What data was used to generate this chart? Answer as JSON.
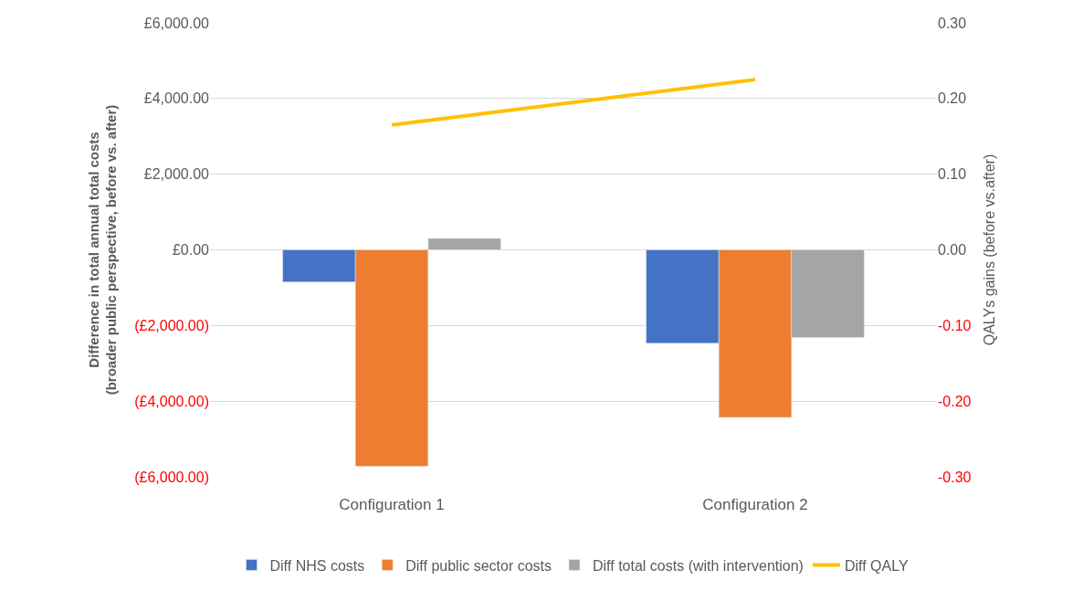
{
  "chart_data": {
    "type": "bar",
    "ylabel": "Difference in total annual total costs (broader public perspective, before vs. after)",
    "y2label": "QALYs gains (before vs.after)",
    "categories": [
      "Configuration 1",
      "Configuration 2"
    ],
    "series": [
      {
        "name": "Diff NHS costs",
        "color": "#4472c4",
        "values": [
          -850,
          -2470
        ]
      },
      {
        "name": "Diff public sector costs",
        "color": "#ed7d31",
        "values": [
          -5720,
          -4430
        ]
      },
      {
        "name": "Diff total costs (with intervention)",
        "color": "#a5a5a5",
        "values": [
          300,
          -2320
        ]
      },
      {
        "name": "Diff QALY",
        "color": "#ffc000",
        "type": "line",
        "axis": "y2",
        "values": [
          0.165,
          0.225
        ]
      }
    ],
    "ylim": [
      -6000,
      6000
    ],
    "yticks": [
      {
        "value": -6000,
        "label": "(£6,000.00)"
      },
      {
        "value": -4000,
        "label": "(£4,000.00)"
      },
      {
        "value": -2000,
        "label": "(£2,000.00)"
      },
      {
        "value": 0,
        "label": "£0.00"
      },
      {
        "value": 2000,
        "label": "£2,000.00"
      },
      {
        "value": 4000,
        "label": "£4,000.00"
      },
      {
        "value": 6000,
        "label": "£6,000.00"
      }
    ],
    "y2lim": [
      -0.3,
      0.3
    ],
    "y2ticks": [
      {
        "value": -0.3,
        "label": "-0.30"
      },
      {
        "value": -0.2,
        "label": "-0.20"
      },
      {
        "value": -0.1,
        "label": "-0.10"
      },
      {
        "value": 0,
        "label": "0.00"
      },
      {
        "value": 0.1,
        "label": "0.10"
      },
      {
        "value": 0.2,
        "label": "0.20"
      },
      {
        "value": 0.3,
        "label": "0.30"
      }
    ],
    "grid": "y",
    "legend": "bottom",
    "marker": "none",
    "line_style": "solid"
  }
}
